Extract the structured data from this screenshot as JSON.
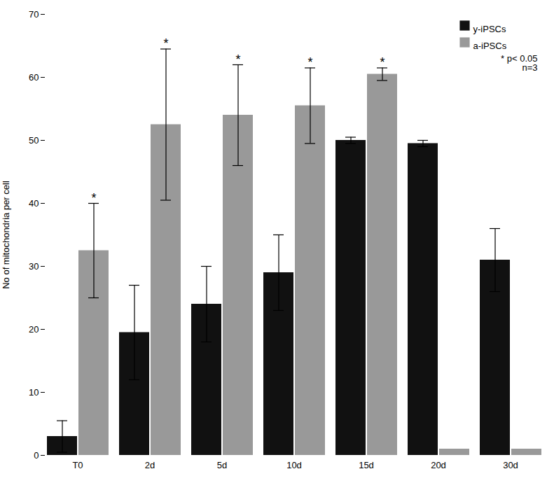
{
  "chart_data": {
    "type": "bar",
    "categories": [
      "T0",
      "2d",
      "5d",
      "10d",
      "15d",
      "20d",
      "30d"
    ],
    "series": [
      {
        "name": "y-iPSCs",
        "color": "#111111",
        "values": [
          3.0,
          19.5,
          24.0,
          29.0,
          50.0,
          49.5,
          31.0
        ],
        "errors": [
          2.5,
          7.5,
          6.0,
          6.0,
          0.5,
          0.5,
          5.0
        ],
        "significant": [
          false,
          false,
          false,
          false,
          false,
          false,
          false
        ]
      },
      {
        "name": "a-iPSCs",
        "color": "#999999",
        "values": [
          32.5,
          52.5,
          54.0,
          55.5,
          60.5,
          1.0,
          1.0
        ],
        "errors": [
          7.5,
          12.0,
          8.0,
          6.0,
          1.0,
          null,
          null
        ],
        "significant": [
          true,
          true,
          true,
          true,
          true,
          false,
          false
        ]
      }
    ],
    "significance_label": "*",
    "ylabel": "No of mitochondria per cell",
    "ylim": [
      0,
      70
    ],
    "yticks": [
      0,
      10,
      20,
      30,
      40,
      50,
      60,
      70
    ],
    "grid": false,
    "legend": "upper right",
    "annotations": [
      "* p< 0.05",
      "    n=3"
    ]
  }
}
